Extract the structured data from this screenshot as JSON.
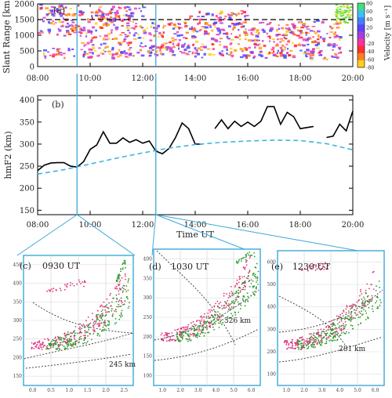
{
  "chart_data": [
    {
      "panel": "(a)",
      "type": "heatmap",
      "ylabel": "Slant Range [km]",
      "x_ticks": [
        "08:00",
        "10:00",
        "12:00",
        "14:00",
        "16:00",
        "18:00",
        "20:00"
      ],
      "y_ticks": [
        0,
        500,
        1000,
        1500,
        2000
      ],
      "xlim": [
        8,
        20
      ],
      "ylim": [
        0,
        2000
      ],
      "colorbar": {
        "label": "Velocity [m s⁻¹]",
        "ticks": [
          80,
          60,
          40,
          20,
          0,
          -20,
          -40,
          -60,
          -80
        ]
      },
      "dashed_line_range_km": 1500,
      "time_markers": [
        9.5,
        12.5
      ]
    },
    {
      "panel": "(b)",
      "type": "line",
      "xlabel": "Time UT",
      "ylabel": "hmF2 (km)",
      "x_ticks": [
        "08:00",
        "10:00",
        "12:00",
        "14:00",
        "16:00",
        "18:00",
        "20:00"
      ],
      "y_ticks": [
        150,
        200,
        250,
        300,
        350,
        400
      ],
      "xlim": [
        8,
        20
      ],
      "ylim": [
        140,
        410
      ],
      "series": [
        {
          "style": "solid",
          "color": "#000000",
          "segments": [
            [
              [
                8.0,
                240
              ],
              [
                8.25,
                252
              ],
              [
                8.5,
                257
              ],
              [
                8.75,
                258
              ],
              [
                9.0,
                258
              ],
              [
                9.25,
                250
              ],
              [
                9.5,
                248
              ],
              [
                9.75,
                260
              ],
              [
                10.0,
                288
              ],
              [
                10.25,
                298
              ],
              [
                10.5,
                328
              ],
              [
                10.75,
                302
              ],
              [
                11.0,
                302
              ],
              [
                11.25,
                314
              ],
              [
                11.5,
                304
              ],
              [
                11.75,
                310
              ],
              [
                12.0,
                302
              ],
              [
                12.25,
                307
              ],
              [
                12.5,
                284
              ],
              [
                12.75,
                278
              ],
              [
                13.0,
                290
              ],
              [
                13.25,
                315
              ],
              [
                13.5,
                348
              ],
              [
                13.75,
                335
              ],
              [
                14.0,
                300
              ],
              [
                14.25,
                300
              ]
            ],
            [
              [
                14.75,
                335
              ],
              [
                15.0,
                355
              ],
              [
                15.25,
                335
              ],
              [
                15.5,
                352
              ],
              [
                15.75,
                340
              ],
              [
                16.0,
                350
              ],
              [
                16.25,
                340
              ],
              [
                16.5,
                352
              ],
              [
                16.75,
                385
              ],
              [
                17.0,
                385
              ],
              [
                17.25,
                345
              ],
              [
                17.5,
                372
              ],
              [
                17.75,
                362
              ],
              [
                18.0,
                335
              ],
              [
                18.5,
                340
              ]
            ],
            [
              [
                19.0,
                315
              ],
              [
                19.25,
                318
              ],
              [
                19.5,
                345
              ],
              [
                19.75,
                330
              ],
              [
                20.0,
                375
              ]
            ]
          ]
        },
        {
          "style": "dashed",
          "color": "#3fb6dc",
          "points": [
            [
              8,
              232
            ],
            [
              9,
              242
            ],
            [
              10,
              255
            ],
            [
              11,
              268
            ],
            [
              12,
              280
            ],
            [
              13,
              291
            ],
            [
              14,
              299
            ],
            [
              15,
              304
            ],
            [
              16,
              307
            ],
            [
              17,
              309
            ],
            [
              18,
              308
            ],
            [
              19,
              301
            ],
            [
              20,
              287
            ]
          ]
        }
      ],
      "time_markers": [
        9.5,
        12.5
      ]
    },
    {
      "panel": "(c)",
      "type": "scatter",
      "title": "0930  UT",
      "annotation": "245 km",
      "x_ticks": [
        "0.0",
        "0.5",
        "1.0",
        "1.5",
        "2.0",
        "2.5"
      ],
      "y_ticks": [
        150,
        200,
        250,
        300,
        350,
        400,
        450
      ]
    },
    {
      "panel": "(d)",
      "type": "scatter",
      "title": "1030 UT",
      "annotation": "326 km",
      "x_ticks": [
        "1.0",
        "2.0",
        "3.0",
        "4.0",
        "5.0",
        "6.0"
      ],
      "y_ticks": [
        100,
        150,
        200,
        250,
        300,
        350,
        400
      ]
    },
    {
      "panel": "(e)",
      "type": "scatter",
      "title": "1230 UT",
      "annotation": "281 km",
      "x_ticks": [
        "1.0",
        "2.0",
        "3.0",
        "4.0",
        "5.0",
        "6.0"
      ],
      "y_ticks": [
        100,
        200,
        300,
        400,
        500,
        600
      ]
    }
  ]
}
